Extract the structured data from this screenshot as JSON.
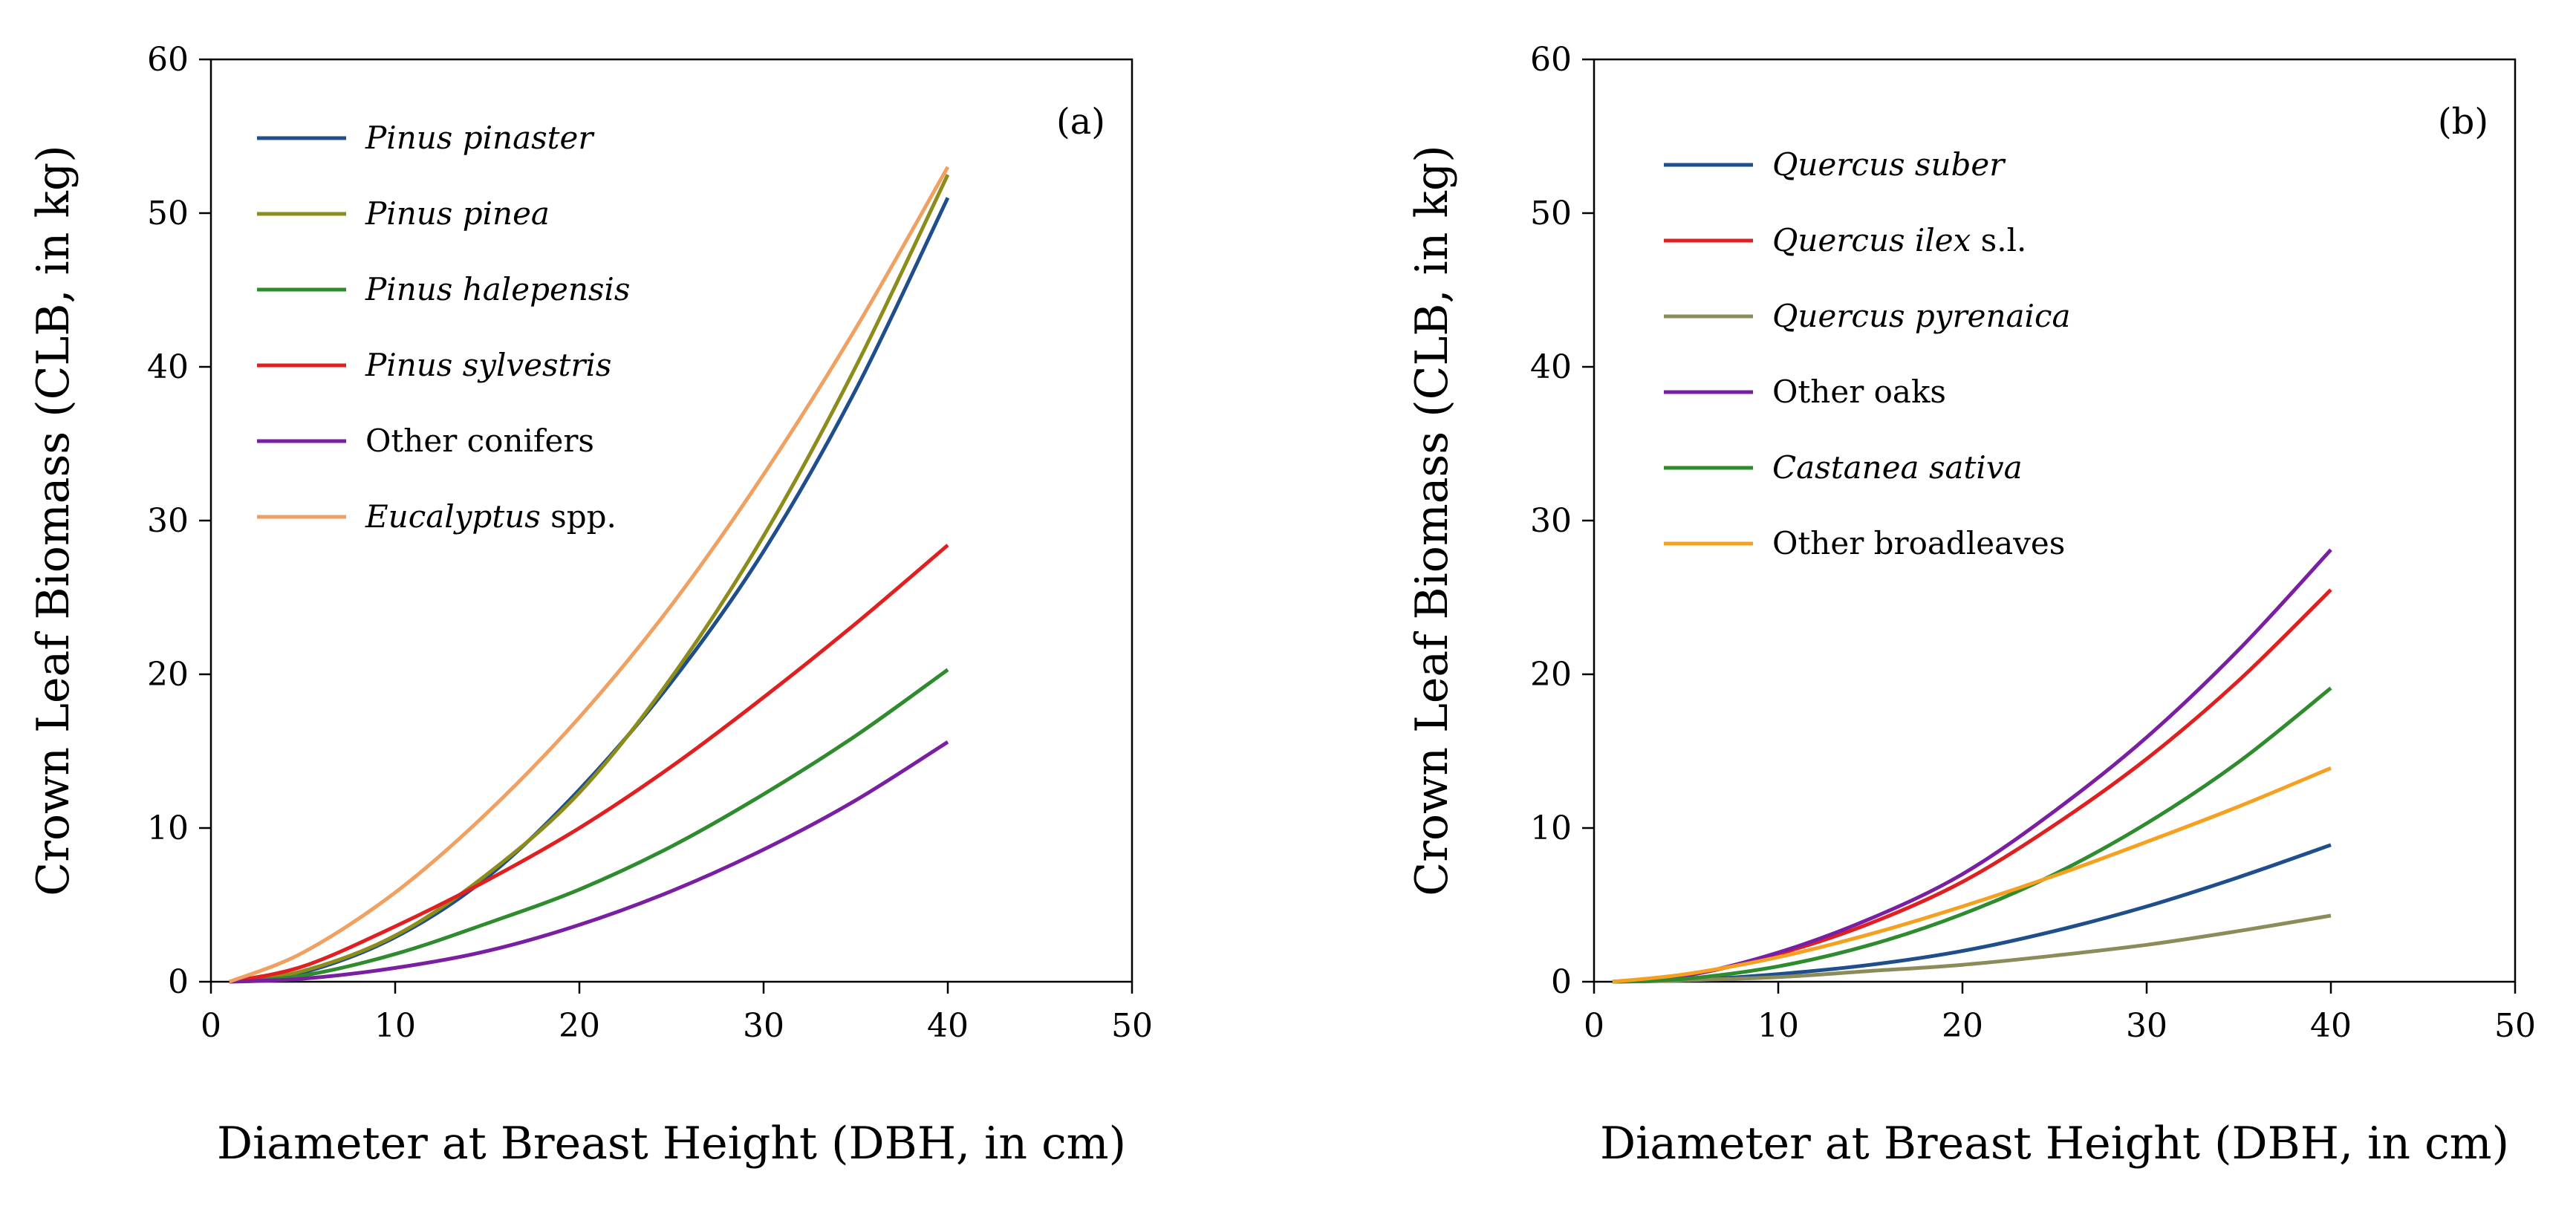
{
  "chart_data": [
    {
      "type": "line",
      "panel_label": "(a)",
      "xlabel": "Diameter at Breast Height (DBH, in cm)",
      "ylabel": "Crown Leaf Biomass (CLB, in kg)",
      "xlim": [
        0,
        50
      ],
      "ylim": [
        0,
        60
      ],
      "x_ticks": [
        "0",
        "10",
        "20",
        "30",
        "40",
        "50"
      ],
      "y_ticks": [
        "0",
        "10",
        "20",
        "30",
        "40",
        "50",
        "60"
      ],
      "grid": false,
      "legend_position": "top-left",
      "x": [
        1,
        5,
        10,
        15,
        20,
        25,
        30,
        35,
        40
      ],
      "series": [
        {
          "name_italic": "Pinus pinaster",
          "name_rest": "",
          "color": "#1f4e8c",
          "values": [
            0,
            0.6,
            2.9,
            6.8,
            12.5,
            19.5,
            28.0,
            38.5,
            51.0
          ]
        },
        {
          "name_italic": "Pinus pinea",
          "name_rest": "",
          "color": "#8c8c1a",
          "values": [
            0,
            0.7,
            3.0,
            7.0,
            12.3,
            19.8,
            29.0,
            40.0,
            52.5
          ]
        },
        {
          "name_italic": "Pinus halepensis",
          "name_rest": "",
          "color": "#2e8b2e",
          "values": [
            0,
            0.4,
            1.8,
            3.8,
            6.0,
            8.8,
            12.2,
            16.0,
            20.3
          ]
        },
        {
          "name_italic": "Pinus sylvestris",
          "name_rest": "",
          "color": "#e02020",
          "values": [
            0,
            1.0,
            3.6,
            6.6,
            10.0,
            14.0,
            18.5,
            23.3,
            28.4
          ]
        },
        {
          "name_italic": "",
          "name_rest": "Other conifers",
          "color": "#7b1fa2",
          "values": [
            0,
            0.2,
            0.9,
            2.0,
            3.7,
            5.9,
            8.6,
            11.8,
            15.6
          ]
        },
        {
          "name_italic": "Eucalyptus",
          "name_rest": " spp.",
          "color": "#f0a060",
          "values": [
            0,
            1.9,
            5.8,
            11.0,
            17.2,
            24.5,
            33.0,
            42.5,
            53.0
          ]
        }
      ]
    },
    {
      "type": "line",
      "panel_label": "(b)",
      "xlabel": "Diameter at Breast Height (DBH, in cm)",
      "ylabel": "Crown Leaf Biomass (CLB, in kg)",
      "xlim": [
        0,
        50
      ],
      "ylim": [
        0,
        60
      ],
      "x_ticks": [
        "0",
        "10",
        "20",
        "30",
        "40",
        "50"
      ],
      "y_ticks": [
        "0",
        "10",
        "20",
        "30",
        "40",
        "50",
        "60"
      ],
      "grid": false,
      "legend_position": "top-left",
      "x": [
        1,
        5,
        10,
        15,
        20,
        25,
        30,
        35,
        40
      ],
      "series": [
        {
          "name_italic": "Quercus suber",
          "name_rest": "",
          "color": "#1f4e8c",
          "values": [
            0,
            0.1,
            0.5,
            1.1,
            2.0,
            3.3,
            4.9,
            6.8,
            8.9
          ]
        },
        {
          "name_italic": "Quercus ilex",
          "name_rest": " s.l.",
          "color": "#e02020",
          "values": [
            0,
            0.4,
            1.8,
            3.8,
            6.5,
            10.2,
            14.5,
            19.6,
            25.5
          ]
        },
        {
          "name_italic": "Quercus pyrenaica",
          "name_rest": "",
          "color": "#8c8c5a",
          "values": [
            0,
            0.1,
            0.3,
            0.7,
            1.1,
            1.7,
            2.4,
            3.3,
            4.3
          ]
        },
        {
          "name_italic": "",
          "name_rest": "Other oaks",
          "color": "#7b1fa2",
          "values": [
            0,
            0.4,
            1.9,
            4.1,
            7.0,
            11.1,
            15.9,
            21.6,
            28.1
          ]
        },
        {
          "name_italic": "Castanea sativa",
          "name_rest": "",
          "color": "#2e8b2e",
          "values": [
            0,
            0.2,
            1.0,
            2.4,
            4.4,
            7.0,
            10.3,
            14.3,
            19.1
          ]
        },
        {
          "name_italic": "",
          "name_rest": "Other broadleaves",
          "color": "#f5a020",
          "values": [
            0,
            0.5,
            1.6,
            3.1,
            4.9,
            6.9,
            9.1,
            11.4,
            13.9
          ]
        }
      ]
    }
  ]
}
